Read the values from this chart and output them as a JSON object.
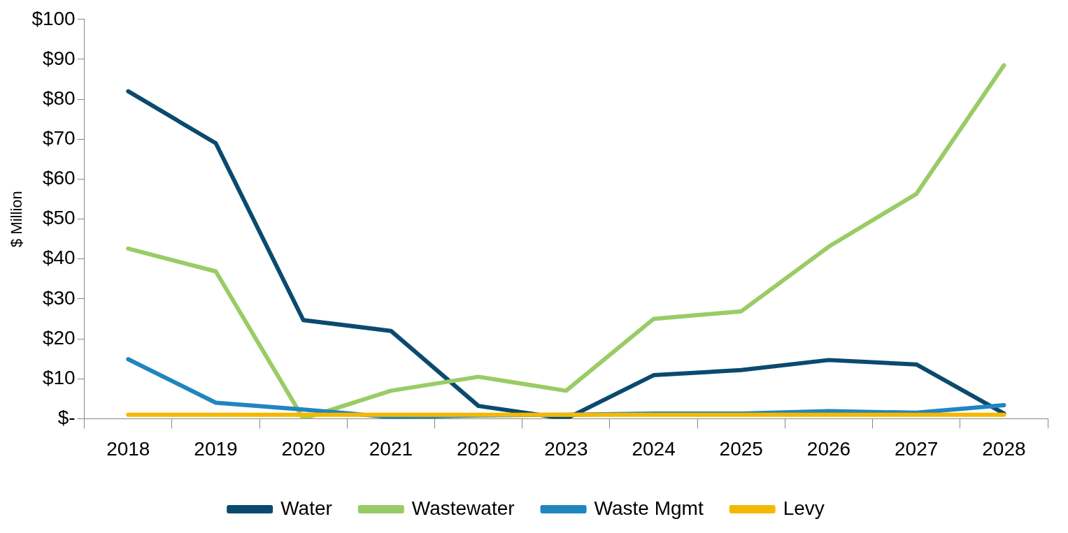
{
  "chart_data": {
    "type": "line",
    "ylabel": "$ Million",
    "categories": [
      "2018",
      "2019",
      "2020",
      "2021",
      "2022",
      "2023",
      "2024",
      "2025",
      "2026",
      "2027",
      "2028"
    ],
    "series": [
      {
        "name": "Water",
        "color": "#0b4a6e",
        "values": [
          82,
          69,
          24.7,
          22,
          3.2,
          0,
          10.9,
          12.2,
          14.7,
          13.6,
          1.3
        ]
      },
      {
        "name": "Wastewater",
        "color": "#99cc66",
        "values": [
          42.6,
          36.9,
          0,
          7,
          10.5,
          7,
          25,
          26.9,
          43.1,
          56.3,
          88.5
        ]
      },
      {
        "name": "Waste Mgmt",
        "color": "#1f86c0",
        "values": [
          14.9,
          4,
          2.3,
          0.4,
          0.8,
          1,
          1.3,
          1.3,
          1.9,
          1.5,
          3.4
        ]
      },
      {
        "name": "Levy",
        "color": "#f5b800",
        "values": [
          1,
          1,
          1,
          1,
          1,
          1,
          1,
          1,
          1,
          1,
          1
        ]
      }
    ],
    "ylim": [
      0,
      100
    ],
    "yticks": [
      {
        "value": 0,
        "label": "$-"
      },
      {
        "value": 10,
        "label": "$10"
      },
      {
        "value": 20,
        "label": "$20"
      },
      {
        "value": 30,
        "label": "$30"
      },
      {
        "value": 40,
        "label": "$40"
      },
      {
        "value": 50,
        "label": "$50"
      },
      {
        "value": 60,
        "label": "$60"
      },
      {
        "value": 70,
        "label": "$70"
      },
      {
        "value": 80,
        "label": "$80"
      },
      {
        "value": 90,
        "label": "$90"
      },
      {
        "value": 100,
        "label": "$100"
      }
    ],
    "grid": false,
    "legend": "bottom",
    "marker": "none",
    "line_style": "solid"
  }
}
